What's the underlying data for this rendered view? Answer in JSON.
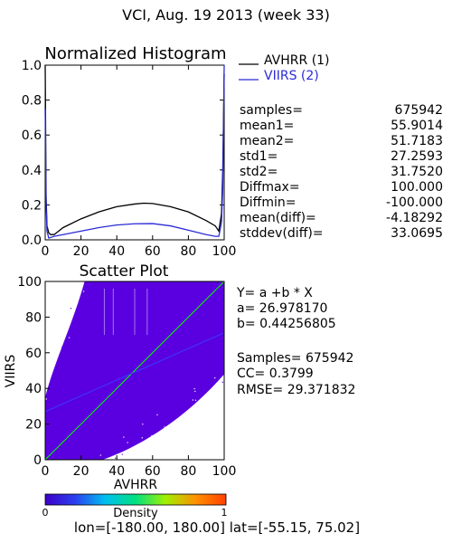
{
  "page_title": "VCI,  Aug. 19 2013 (week 33)",
  "chart_data": [
    {
      "type": "line",
      "title": "Normalized Histogram",
      "xlim": [
        0,
        100
      ],
      "ylim": [
        0,
        1.0
      ],
      "x_ticks": [
        "0",
        "20",
        "40",
        "60",
        "80",
        "100"
      ],
      "y_ticks": [
        "0.0",
        "0.2",
        "0.4",
        "0.6",
        "0.8",
        "1.0"
      ],
      "legend_position": "right",
      "series": [
        {
          "name": "AVHRR (1)",
          "color": "#000000",
          "points": [
            [
              0,
              1.0
            ],
            [
              0.5,
              0.25
            ],
            [
              1,
              0.08
            ],
            [
              2,
              0.04
            ],
            [
              3,
              0.03
            ],
            [
              5,
              0.03
            ],
            [
              10,
              0.07
            ],
            [
              20,
              0.12
            ],
            [
              30,
              0.16
            ],
            [
              40,
              0.19
            ],
            [
              50,
              0.205
            ],
            [
              55,
              0.21
            ],
            [
              60,
              0.208
            ],
            [
              70,
              0.19
            ],
            [
              80,
              0.16
            ],
            [
              90,
              0.11
            ],
            [
              95,
              0.08
            ],
            [
              97,
              0.05
            ],
            [
              98.5,
              0.15
            ],
            [
              99.2,
              0.4
            ],
            [
              100,
              0.95
            ]
          ]
        },
        {
          "name": "VIIRS (2)",
          "color": "#2b2bd6",
          "points": [
            [
              0,
              0.75
            ],
            [
              0.5,
              0.2
            ],
            [
              1,
              0.05
            ],
            [
              2,
              0.01
            ],
            [
              5,
              0.02
            ],
            [
              10,
              0.03
            ],
            [
              20,
              0.05
            ],
            [
              30,
              0.07
            ],
            [
              40,
              0.085
            ],
            [
              50,
              0.092
            ],
            [
              60,
              0.093
            ],
            [
              70,
              0.08
            ],
            [
              80,
              0.055
            ],
            [
              90,
              0.03
            ],
            [
              95,
              0.02
            ],
            [
              97,
              0.02
            ],
            [
              98.5,
              0.1
            ],
            [
              99.2,
              0.3
            ],
            [
              100,
              1.0
            ]
          ]
        }
      ],
      "stats": [
        {
          "label": "samples=",
          "value": "675942"
        },
        {
          "label": "mean1=",
          "value": "55.9014"
        },
        {
          "label": "mean2=",
          "value": "51.7183"
        },
        {
          "label": "std1=",
          "value": "27.2593"
        },
        {
          "label": "std2=",
          "value": "31.7520"
        },
        {
          "label": "Diffmax=",
          "value": "100.000"
        },
        {
          "label": "Diffmin=",
          "value": "-100.000"
        },
        {
          "label": "mean(diff)=",
          "value": "-4.18292"
        },
        {
          "label": "stddev(diff)=",
          "value": "33.0695"
        }
      ]
    },
    {
      "type": "scatter",
      "title": "Scatter Plot",
      "xlabel": "AVHRR",
      "ylabel": "VIIRS",
      "xlim": [
        0,
        100
      ],
      "ylim": [
        0,
        100
      ],
      "x_ticks": [
        "0",
        "20",
        "40",
        "60",
        "80",
        "100"
      ],
      "y_ticks": [
        "0",
        "20",
        "40",
        "60",
        "80",
        "100"
      ],
      "point_color": "#5a00e0",
      "background": "#5a00e0",
      "regression": {
        "a": 26.97817,
        "b": 0.44256805,
        "color": "#3a3aff"
      },
      "identity_line": {
        "color": "#00ff00"
      },
      "annotations": [
        "Y= a +b * X",
        "a= 26.978170",
        "b= 0.44256805",
        "Samples= 675942",
        "CC=  0.3799",
        "RMSE= 29.371832"
      ]
    }
  ],
  "colorbar": {
    "label": "Density",
    "min_label": "0",
    "max_label": "1",
    "colors": [
      "#3d00c8",
      "#2a40f0",
      "#00c0f0",
      "#00e080",
      "#a0f000",
      "#ff9000",
      "#ff4000"
    ]
  },
  "footer": "lon=[-180.00, 180.00] lat=[-55.15, 75.02]"
}
